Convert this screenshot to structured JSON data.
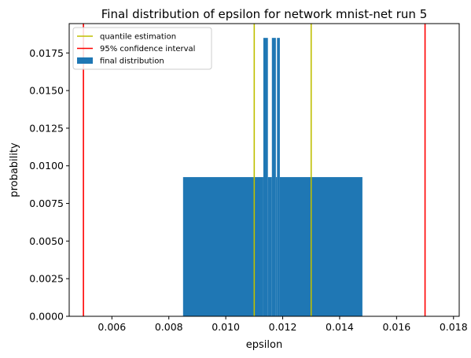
{
  "chart_data": {
    "type": "bar",
    "title": "Final distribution of epsilon for network mnist-net run 5",
    "xlabel": "epsilon",
    "ylabel": "probability",
    "xlim": [
      0.0045,
      0.0182
    ],
    "ylim": [
      0.0,
      0.01945
    ],
    "x_ticks": [
      0.006,
      0.008,
      0.01,
      0.012,
      0.014,
      0.016,
      0.018
    ],
    "x_tick_labels": [
      "0.006",
      "0.008",
      "0.010",
      "0.012",
      "0.014",
      "0.016",
      "0.018"
    ],
    "y_ticks": [
      0.0,
      0.0025,
      0.005,
      0.0075,
      0.01,
      0.0125,
      0.015,
      0.0175
    ],
    "y_tick_labels": [
      "0.0000",
      "0.0025",
      "0.0050",
      "0.0075",
      "0.0100",
      "0.0125",
      "0.0150",
      "0.0175"
    ],
    "grid": false,
    "legend_position": "top-left",
    "series": [
      {
        "name": "final distribution",
        "kind": "bar",
        "color": "#1f77b4",
        "bins": [
          {
            "x0": 0.0085,
            "x1": 0.01132,
            "value": 0.00925
          },
          {
            "x0": 0.01132,
            "x1": 0.01148,
            "value": 0.0185
          },
          {
            "x0": 0.01148,
            "x1": 0.01162,
            "value": 0.00925
          },
          {
            "x0": 0.01162,
            "x1": 0.01176,
            "value": 0.0185
          },
          {
            "x0": 0.01176,
            "x1": 0.0118,
            "value": 0.00925
          },
          {
            "x0": 0.0118,
            "x1": 0.0119,
            "value": 0.0185
          },
          {
            "x0": 0.0119,
            "x1": 0.0148,
            "value": 0.00925
          }
        ]
      },
      {
        "name": "quantile estimation",
        "kind": "vline",
        "color": "#bfbf00",
        "values": [
          0.011,
          0.013
        ]
      },
      {
        "name": "95% confidence interval",
        "kind": "vline",
        "color": "#ff0000",
        "values": [
          0.005,
          0.017
        ]
      }
    ],
    "legend_order": [
      "quantile estimation",
      "95% confidence interval",
      "final distribution"
    ]
  }
}
